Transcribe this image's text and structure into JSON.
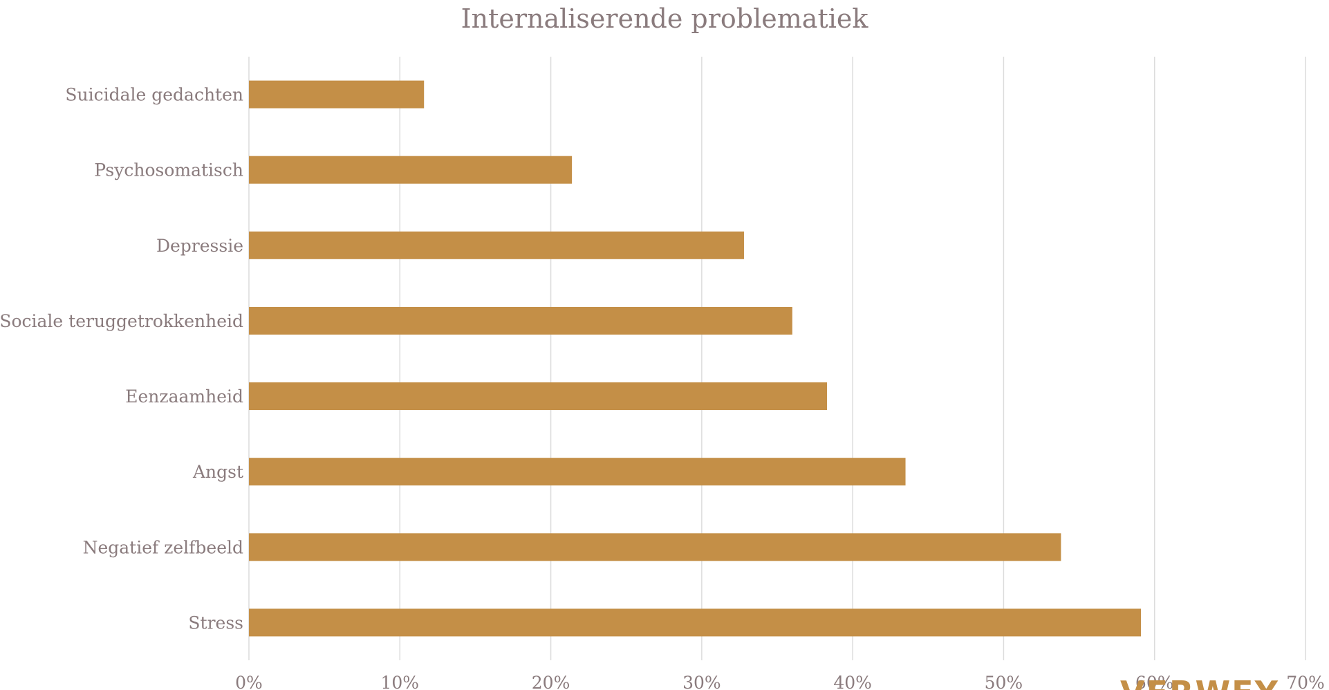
{
  "chart_data": {
    "type": "bar",
    "orientation": "horizontal",
    "title": "Internaliserende problematiek",
    "xlabel": "",
    "ylabel": "",
    "categories": [
      "Suicidale gedachten",
      "Psychosomatisch",
      "Depressie",
      "Sociale teruggetrokkenheid",
      "Eenzaamheid",
      "Angst",
      "Negatief zelfbeeld",
      "Stress"
    ],
    "values": [
      11.6,
      21.4,
      32.8,
      36.0,
      38.3,
      43.5,
      53.8,
      59.1
    ],
    "xlim": [
      0,
      70
    ],
    "ticks": [
      0,
      10,
      20,
      30,
      40,
      50,
      60,
      70
    ],
    "tick_labels": [
      "0%",
      "10%",
      "20%",
      "30%",
      "40%",
      "50%",
      "60%",
      "70%"
    ],
    "grid": "vertical",
    "bar_color": "#c48f47"
  },
  "watermark": {
    "text": "VERWEY",
    "color": "#c48f47"
  }
}
